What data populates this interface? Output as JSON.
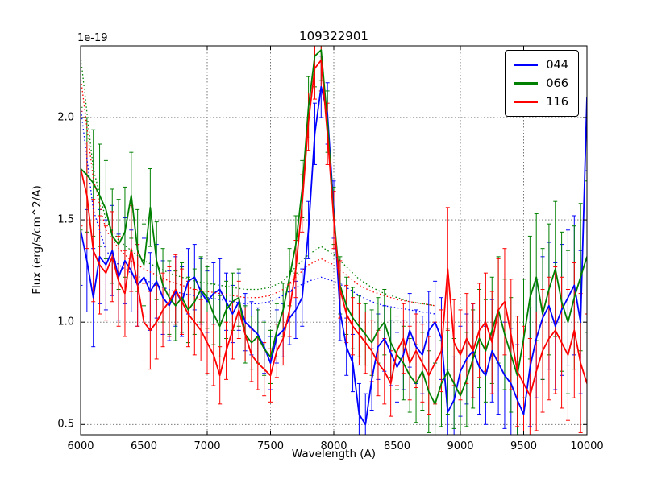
{
  "figure": {
    "title": "109322901",
    "xlabel": "Wavelength (A)",
    "ylabel": "Flux (erg/s/cm^2/A)",
    "offset_text": "1e-19"
  },
  "legend": {
    "items": [
      {
        "label": "044",
        "color": "#0000ff"
      },
      {
        "label": "066",
        "color": "#008000"
      },
      {
        "label": "116",
        "color": "#ff0000"
      }
    ]
  },
  "chart_data": {
    "type": "line",
    "title": "109322901",
    "xlabel": "Wavelength (A)",
    "ylabel": "Flux (erg/s/cm^2/A)",
    "y_scale_factor": "1e-19",
    "xlim": [
      6000,
      10000
    ],
    "ylim": [
      0.45,
      2.35
    ],
    "xticks": [
      6000,
      6500,
      7000,
      7500,
      8000,
      8500,
      9000,
      9500,
      10000
    ],
    "xtick_labels": [
      "6000",
      "6500",
      "7000",
      "7500",
      "8000",
      "8500",
      "9000",
      "9500",
      "10000"
    ],
    "yticks": [
      0.5,
      1.0,
      1.5,
      2.0
    ],
    "ytick_labels": [
      "0.5",
      "1.0",
      "1.5",
      "2.0"
    ],
    "grid": true,
    "grid_style": "dotted",
    "legend_position": "upper right",
    "error_bars": true,
    "x": [
      6000,
      6050,
      6100,
      6150,
      6200,
      6250,
      6300,
      6350,
      6400,
      6450,
      6500,
      6550,
      6600,
      6650,
      6700,
      6750,
      6800,
      6850,
      6900,
      6950,
      7000,
      7050,
      7100,
      7150,
      7200,
      7250,
      7300,
      7350,
      7400,
      7450,
      7500,
      7550,
      7600,
      7650,
      7700,
      7750,
      7800,
      7850,
      7900,
      7950,
      8000,
      8050,
      8100,
      8150,
      8200,
      8250,
      8300,
      8350,
      8400,
      8450,
      8500,
      8550,
      8600,
      8650,
      8700,
      8750,
      8800,
      8850,
      8900,
      8950,
      9000,
      9050,
      9100,
      9150,
      9200,
      9250,
      9300,
      9350,
      9400,
      9450,
      9500,
      9550,
      9600,
      9650,
      9700,
      9750,
      9800,
      9850,
      9900,
      9950,
      10000
    ],
    "series": [
      {
        "name": "044",
        "color": "#0000ff",
        "style": "solid",
        "values": [
          1.45,
          1.3,
          1.12,
          1.32,
          1.28,
          1.35,
          1.22,
          1.3,
          1.25,
          1.18,
          1.22,
          1.15,
          1.2,
          1.12,
          1.08,
          1.15,
          1.1,
          1.2,
          1.22,
          1.15,
          1.1,
          1.14,
          1.16,
          1.1,
          1.04,
          1.1,
          1.0,
          0.97,
          0.94,
          0.88,
          0.8,
          0.93,
          0.96,
          1.02,
          1.06,
          1.12,
          1.45,
          1.92,
          2.15,
          2.02,
          1.55,
          1.05,
          0.88,
          0.8,
          0.55,
          0.5,
          0.72,
          0.88,
          0.92,
          0.85,
          0.78,
          0.84,
          0.96,
          0.88,
          0.84,
          0.96,
          1.0,
          0.92,
          0.56,
          0.62,
          0.76,
          0.82,
          0.86,
          0.78,
          0.74,
          0.86,
          0.8,
          0.74,
          0.7,
          0.62,
          0.55,
          0.78,
          0.92,
          1.02,
          1.08,
          0.98,
          1.06,
          1.12,
          1.18,
          1.0,
          2.1
        ],
        "err": [
          0.27,
          0.25,
          0.24,
          0.23,
          0.22,
          0.22,
          0.21,
          0.21,
          0.2,
          0.2,
          0.19,
          0.19,
          0.18,
          0.18,
          0.17,
          0.17,
          0.17,
          0.16,
          0.16,
          0.16,
          0.15,
          0.15,
          0.15,
          0.14,
          0.14,
          0.14,
          0.14,
          0.13,
          0.13,
          0.13,
          0.13,
          0.13,
          0.13,
          0.13,
          0.14,
          0.14,
          0.14,
          0.15,
          0.15,
          0.15,
          0.14,
          0.14,
          0.14,
          0.14,
          0.15,
          0.15,
          0.15,
          0.16,
          0.16,
          0.16,
          0.17,
          0.17,
          0.18,
          0.18,
          0.19,
          0.19,
          0.2,
          0.2,
          0.21,
          0.21,
          0.22,
          0.22,
          0.23,
          0.23,
          0.24,
          0.25,
          0.25,
          0.26,
          0.27,
          0.27,
          0.28,
          0.29,
          0.29,
          0.3,
          0.31,
          0.31,
          0.32,
          0.33,
          0.34,
          0.35,
          0.36
        ]
      },
      {
        "name": "066",
        "color": "#008000",
        "style": "solid",
        "values": [
          1.75,
          1.72,
          1.68,
          1.62,
          1.55,
          1.42,
          1.38,
          1.44,
          1.62,
          1.35,
          1.28,
          1.56,
          1.3,
          1.18,
          1.12,
          1.08,
          1.12,
          1.06,
          1.1,
          1.16,
          1.12,
          1.04,
          0.98,
          1.06,
          1.1,
          1.12,
          0.94,
          0.9,
          0.93,
          0.87,
          0.83,
          0.96,
          1.06,
          1.22,
          1.38,
          1.65,
          2.05,
          2.3,
          2.33,
          1.98,
          1.52,
          1.18,
          1.08,
          1.02,
          0.98,
          0.94,
          0.9,
          0.96,
          1.0,
          0.9,
          0.84,
          0.8,
          0.74,
          0.7,
          0.76,
          0.66,
          0.6,
          0.7,
          0.76,
          0.7,
          0.64,
          0.72,
          0.82,
          0.92,
          0.86,
          0.96,
          1.06,
          0.94,
          0.84,
          0.74,
          0.92,
          1.12,
          1.22,
          1.04,
          1.16,
          1.26,
          1.1,
          1.0,
          1.12,
          1.22,
          1.32
        ],
        "err": [
          0.3,
          0.28,
          0.26,
          0.25,
          0.24,
          0.23,
          0.22,
          0.22,
          0.21,
          0.2,
          0.2,
          0.19,
          0.19,
          0.18,
          0.18,
          0.17,
          0.17,
          0.16,
          0.16,
          0.16,
          0.15,
          0.15,
          0.15,
          0.14,
          0.14,
          0.14,
          0.14,
          0.13,
          0.13,
          0.13,
          0.13,
          0.13,
          0.13,
          0.14,
          0.14,
          0.14,
          0.15,
          0.15,
          0.15,
          0.15,
          0.14,
          0.14,
          0.14,
          0.15,
          0.15,
          0.15,
          0.16,
          0.16,
          0.16,
          0.17,
          0.17,
          0.18,
          0.18,
          0.19,
          0.19,
          0.2,
          0.2,
          0.21,
          0.21,
          0.22,
          0.22,
          0.23,
          0.24,
          0.24,
          0.25,
          0.26,
          0.26,
          0.27,
          0.28,
          0.29,
          0.29,
          0.3,
          0.31,
          0.32,
          0.32,
          0.33,
          0.34,
          0.35,
          0.35,
          0.36,
          0.37
        ]
      },
      {
        "name": "116",
        "color": "#ff0000",
        "style": "solid",
        "values": [
          1.75,
          1.62,
          1.35,
          1.28,
          1.24,
          1.32,
          1.2,
          1.14,
          1.36,
          1.18,
          1.0,
          0.96,
          1.0,
          1.06,
          1.1,
          1.16,
          1.1,
          1.04,
          1.0,
          0.96,
          0.9,
          0.84,
          0.74,
          0.86,
          0.96,
          1.06,
          0.94,
          0.84,
          0.8,
          0.77,
          0.74,
          0.86,
          0.92,
          1.06,
          1.26,
          1.58,
          1.98,
          2.24,
          2.28,
          1.92,
          1.5,
          1.16,
          1.04,
          0.98,
          0.94,
          0.9,
          0.86,
          0.8,
          0.76,
          0.7,
          0.86,
          0.92,
          0.8,
          0.86,
          0.8,
          0.74,
          0.8,
          0.86,
          1.26,
          0.9,
          0.84,
          0.92,
          0.86,
          0.96,
          1.0,
          0.9,
          1.06,
          1.1,
          0.94,
          0.76,
          0.7,
          0.64,
          0.76,
          0.86,
          0.92,
          0.96,
          0.9,
          0.84,
          0.96,
          0.8,
          0.7
        ],
        "err": [
          0.28,
          0.26,
          0.25,
          0.24,
          0.23,
          0.22,
          0.22,
          0.21,
          0.21,
          0.2,
          0.19,
          0.19,
          0.18,
          0.18,
          0.17,
          0.17,
          0.16,
          0.16,
          0.16,
          0.15,
          0.15,
          0.15,
          0.14,
          0.14,
          0.14,
          0.14,
          0.13,
          0.13,
          0.13,
          0.13,
          0.13,
          0.13,
          0.13,
          0.13,
          0.14,
          0.14,
          0.14,
          0.15,
          0.15,
          0.15,
          0.14,
          0.14,
          0.14,
          0.14,
          0.15,
          0.15,
          0.15,
          0.16,
          0.16,
          0.16,
          0.17,
          0.17,
          0.18,
          0.18,
          0.19,
          0.19,
          0.2,
          0.2,
          0.3,
          0.21,
          0.22,
          0.22,
          0.23,
          0.23,
          0.24,
          0.25,
          0.25,
          0.26,
          0.27,
          0.27,
          0.28,
          0.28,
          0.29,
          0.3,
          0.3,
          0.31,
          0.32,
          0.32,
          0.33,
          0.34,
          0.34
        ]
      }
    ],
    "smoothed_x": [
      6000,
      6100,
      6200,
      6300,
      6400,
      6500,
      6600,
      6700,
      6800,
      6900,
      7000,
      7100,
      7200,
      7300,
      7400,
      7500,
      7600,
      7700,
      7800,
      7900,
      8000,
      8100,
      8200,
      8300,
      8400,
      8500,
      8600,
      8700,
      8800
    ],
    "smoothed_series": [
      {
        "name": "044-smoothed",
        "color": "#0000ff",
        "style": "dotted",
        "values": [
          2.05,
          1.55,
          1.35,
          1.28,
          1.24,
          1.21,
          1.18,
          1.16,
          1.14,
          1.13,
          1.12,
          1.11,
          1.1,
          1.09,
          1.09,
          1.1,
          1.13,
          1.17,
          1.2,
          1.22,
          1.2,
          1.17,
          1.13,
          1.1,
          1.08,
          1.07,
          1.06,
          1.05,
          1.04
        ]
      },
      {
        "name": "066-smoothed",
        "color": "#008000",
        "style": "dotted",
        "values": [
          2.3,
          1.75,
          1.5,
          1.4,
          1.35,
          1.3,
          1.27,
          1.24,
          1.22,
          1.2,
          1.19,
          1.18,
          1.17,
          1.16,
          1.16,
          1.17,
          1.2,
          1.27,
          1.33,
          1.37,
          1.33,
          1.27,
          1.21,
          1.17,
          1.14,
          1.12,
          1.1,
          1.09,
          1.08
        ]
      },
      {
        "name": "116-smoothed",
        "color": "#ff0000",
        "style": "dotted",
        "values": [
          2.2,
          1.7,
          1.45,
          1.36,
          1.3,
          1.26,
          1.23,
          1.2,
          1.18,
          1.16,
          1.15,
          1.14,
          1.13,
          1.12,
          1.12,
          1.13,
          1.16,
          1.22,
          1.28,
          1.31,
          1.28,
          1.23,
          1.18,
          1.15,
          1.13,
          1.11,
          1.1,
          1.09,
          1.08
        ]
      }
    ]
  }
}
